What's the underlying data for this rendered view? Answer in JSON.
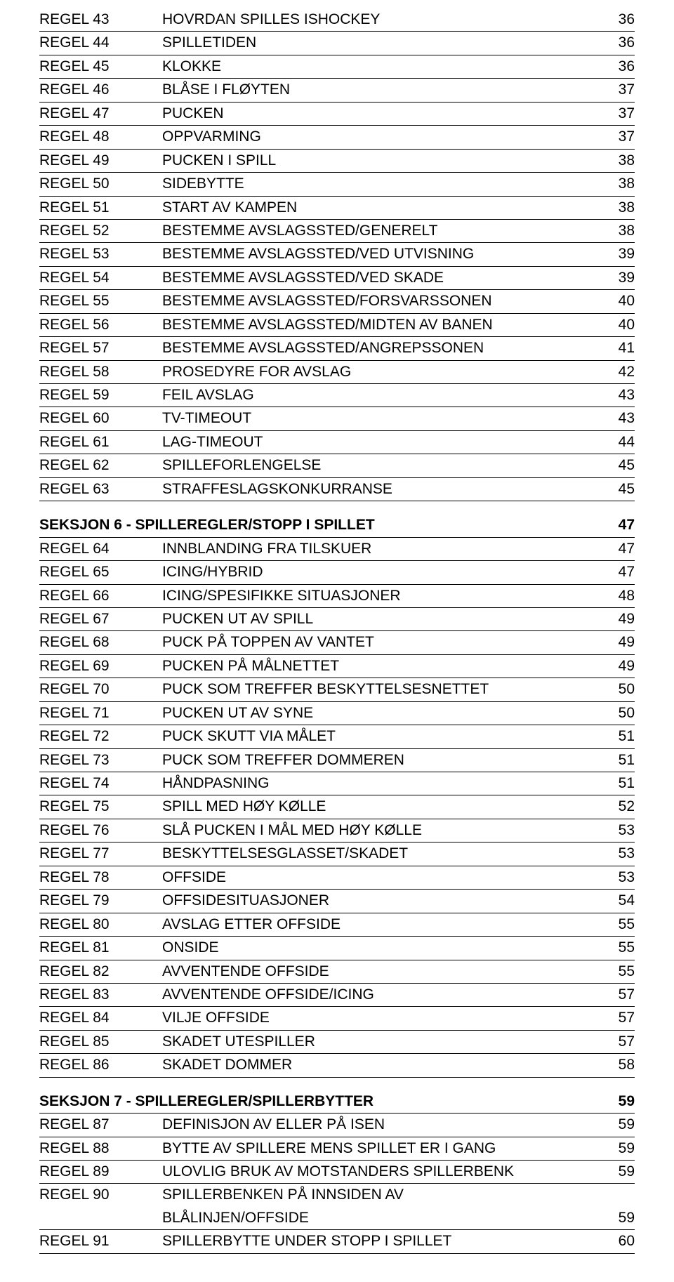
{
  "groups": [
    {
      "rows": [
        {
          "c1": "REGEL 43",
          "c2": "HOVRDAN SPILLES ISHOCKEY",
          "c3": "36"
        },
        {
          "c1": "REGEL 44",
          "c2": "SPILLETIDEN",
          "c3": "36"
        },
        {
          "c1": "REGEL 45",
          "c2": "KLOKKE",
          "c3": "36"
        },
        {
          "c1": "REGEL 46",
          "c2": "BLÅSE I FLØYTEN",
          "c3": "37"
        },
        {
          "c1": "REGEL 47",
          "c2": "PUCKEN",
          "c3": "37"
        },
        {
          "c1": "REGEL 48",
          "c2": "OPPVARMING",
          "c3": "37"
        },
        {
          "c1": "REGEL 49",
          "c2": "PUCKEN I SPILL",
          "c3": "38"
        },
        {
          "c1": "REGEL 50",
          "c2": "SIDEBYTTE",
          "c3": "38"
        },
        {
          "c1": "REGEL 51",
          "c2": "START AV KAMPEN",
          "c3": "38"
        },
        {
          "c1": "REGEL 52",
          "c2": "BESTEMME AVSLAGSSTED/GENERELT",
          "c3": "38"
        },
        {
          "c1": "REGEL 53",
          "c2": "BESTEMME AVSLAGSSTED/VED UTVISNING",
          "c3": "39"
        },
        {
          "c1": "REGEL 54",
          "c2": "BESTEMME AVSLAGSSTED/VED SKADE",
          "c3": "39"
        },
        {
          "c1": "REGEL 55",
          "c2": "BESTEMME AVSLAGSSTED/FORSVARSSONEN",
          "c3": "40"
        },
        {
          "c1": "REGEL 56",
          "c2": "BESTEMME AVSLAGSSTED/MIDTEN AV BANEN",
          "c3": "40"
        },
        {
          "c1": "REGEL 57",
          "c2": "BESTEMME AVSLAGSSTED/ANGREPSSONEN",
          "c3": "41"
        },
        {
          "c1": "REGEL 58",
          "c2": "PROSEDYRE FOR AVSLAG",
          "c3": "42"
        },
        {
          "c1": "REGEL 59",
          "c2": "FEIL AVSLAG",
          "c3": "43"
        },
        {
          "c1": "REGEL 60",
          "c2": "TV-TIMEOUT",
          "c3": "43"
        },
        {
          "c1": "REGEL 61",
          "c2": "LAG-TIMEOUT",
          "c3": "44"
        },
        {
          "c1": "REGEL 62",
          "c2": "SPILLEFORLENGELSE",
          "c3": "45"
        },
        {
          "c1": "REGEL 63",
          "c2": "STRAFFESLAGSKONKURRANSE",
          "c3": "45"
        }
      ]
    },
    {
      "section": {
        "label": "SEKSJON 6 - SPILLEREGLER/STOPP I SPILLET",
        "page": "47"
      },
      "rows": [
        {
          "c1": "REGEL 64",
          "c2": "INNBLANDING FRA TILSKUER",
          "c3": "47"
        },
        {
          "c1": "REGEL 65",
          "c2": "ICING/HYBRID",
          "c3": "47"
        },
        {
          "c1": "REGEL 66",
          "c2": "ICING/SPESIFIKKE SITUASJONER",
          "c3": "48"
        },
        {
          "c1": "REGEL 67",
          "c2": "PUCKEN UT AV SPILL",
          "c3": "49"
        },
        {
          "c1": "REGEL 68",
          "c2": "PUCK PÅ TOPPEN AV VANTET",
          "c3": "49"
        },
        {
          "c1": "REGEL 69",
          "c2": "PUCKEN PÅ MÅLNETTET",
          "c3": "49"
        },
        {
          "c1": "REGEL 70",
          "c2": "PUCK SOM TREFFER BESKYTTELSESNETTET",
          "c3": "50"
        },
        {
          "c1": "REGEL 71",
          "c2": "PUCKEN UT AV SYNE",
          "c3": "50"
        },
        {
          "c1": "REGEL 72",
          "c2": "PUCK SKUTT VIA MÅLET",
          "c3": "51"
        },
        {
          "c1": "REGEL 73",
          "c2": "PUCK SOM TREFFER DOMMEREN",
          "c3": "51"
        },
        {
          "c1": "REGEL 74",
          "c2": "HÅNDPASNING",
          "c3": "51"
        },
        {
          "c1": "REGEL 75",
          "c2": "SPILL MED HØY KØLLE",
          "c3": "52"
        },
        {
          "c1": "REGEL 76",
          "c2": "SLÅ PUCKEN I MÅL MED HØY KØLLE",
          "c3": "53"
        },
        {
          "c1": "REGEL 77",
          "c2": "BESKYTTELSESGLASSET/SKADET",
          "c3": "53"
        },
        {
          "c1": "REGEL 78",
          "c2": "OFFSIDE",
          "c3": "53"
        },
        {
          "c1": "REGEL 79",
          "c2": "OFFSIDESITUASJONER",
          "c3": "54"
        },
        {
          "c1": "REGEL 80",
          "c2": "AVSLAG ETTER OFFSIDE",
          "c3": "55"
        },
        {
          "c1": "REGEL 81",
          "c2": "ONSIDE",
          "c3": "55"
        },
        {
          "c1": "REGEL 82",
          "c2": "AVVENTENDE OFFSIDE",
          "c3": "55"
        },
        {
          "c1": "REGEL 83",
          "c2": "AVVENTENDE OFFSIDE/ICING",
          "c3": "57"
        },
        {
          "c1": "REGEL 84",
          "c2": "VILJE OFFSIDE",
          "c3": "57"
        },
        {
          "c1": "REGEL 85",
          "c2": "SKADET UTESPILLER",
          "c3": "57"
        },
        {
          "c1": "REGEL 86",
          "c2": "SKADET DOMMER",
          "c3": "58"
        }
      ]
    },
    {
      "section": {
        "label": "SEKSJON 7 - SPILLEREGLER/SPILLERBYTTER",
        "page": "59"
      },
      "rows": [
        {
          "c1": "REGEL 87",
          "c2": "DEFINISJON AV ELLER PÅ ISEN",
          "c3": "59"
        },
        {
          "c1": "REGEL 88",
          "c2": "BYTTE AV SPILLERE MENS SPILLET ER I GANG",
          "c3": "59"
        },
        {
          "c1": "REGEL 89",
          "c2": "ULOVLIG BRUK AV MOTSTANDERS SPILLERBENK",
          "c3": "59"
        },
        {
          "c1": "REGEL 90",
          "c2": "SPILLERBENKEN PÅ INNSIDEN AV",
          "c3": "",
          "noBorder": true
        },
        {
          "c1": "",
          "c2": "BLÅLINJEN/OFFSIDE",
          "c3": "59",
          "indent": true
        },
        {
          "c1": "REGEL 91",
          "c2": "SPILLERBYTTE UNDER STOPP I SPILLET",
          "c3": "60"
        }
      ]
    }
  ]
}
